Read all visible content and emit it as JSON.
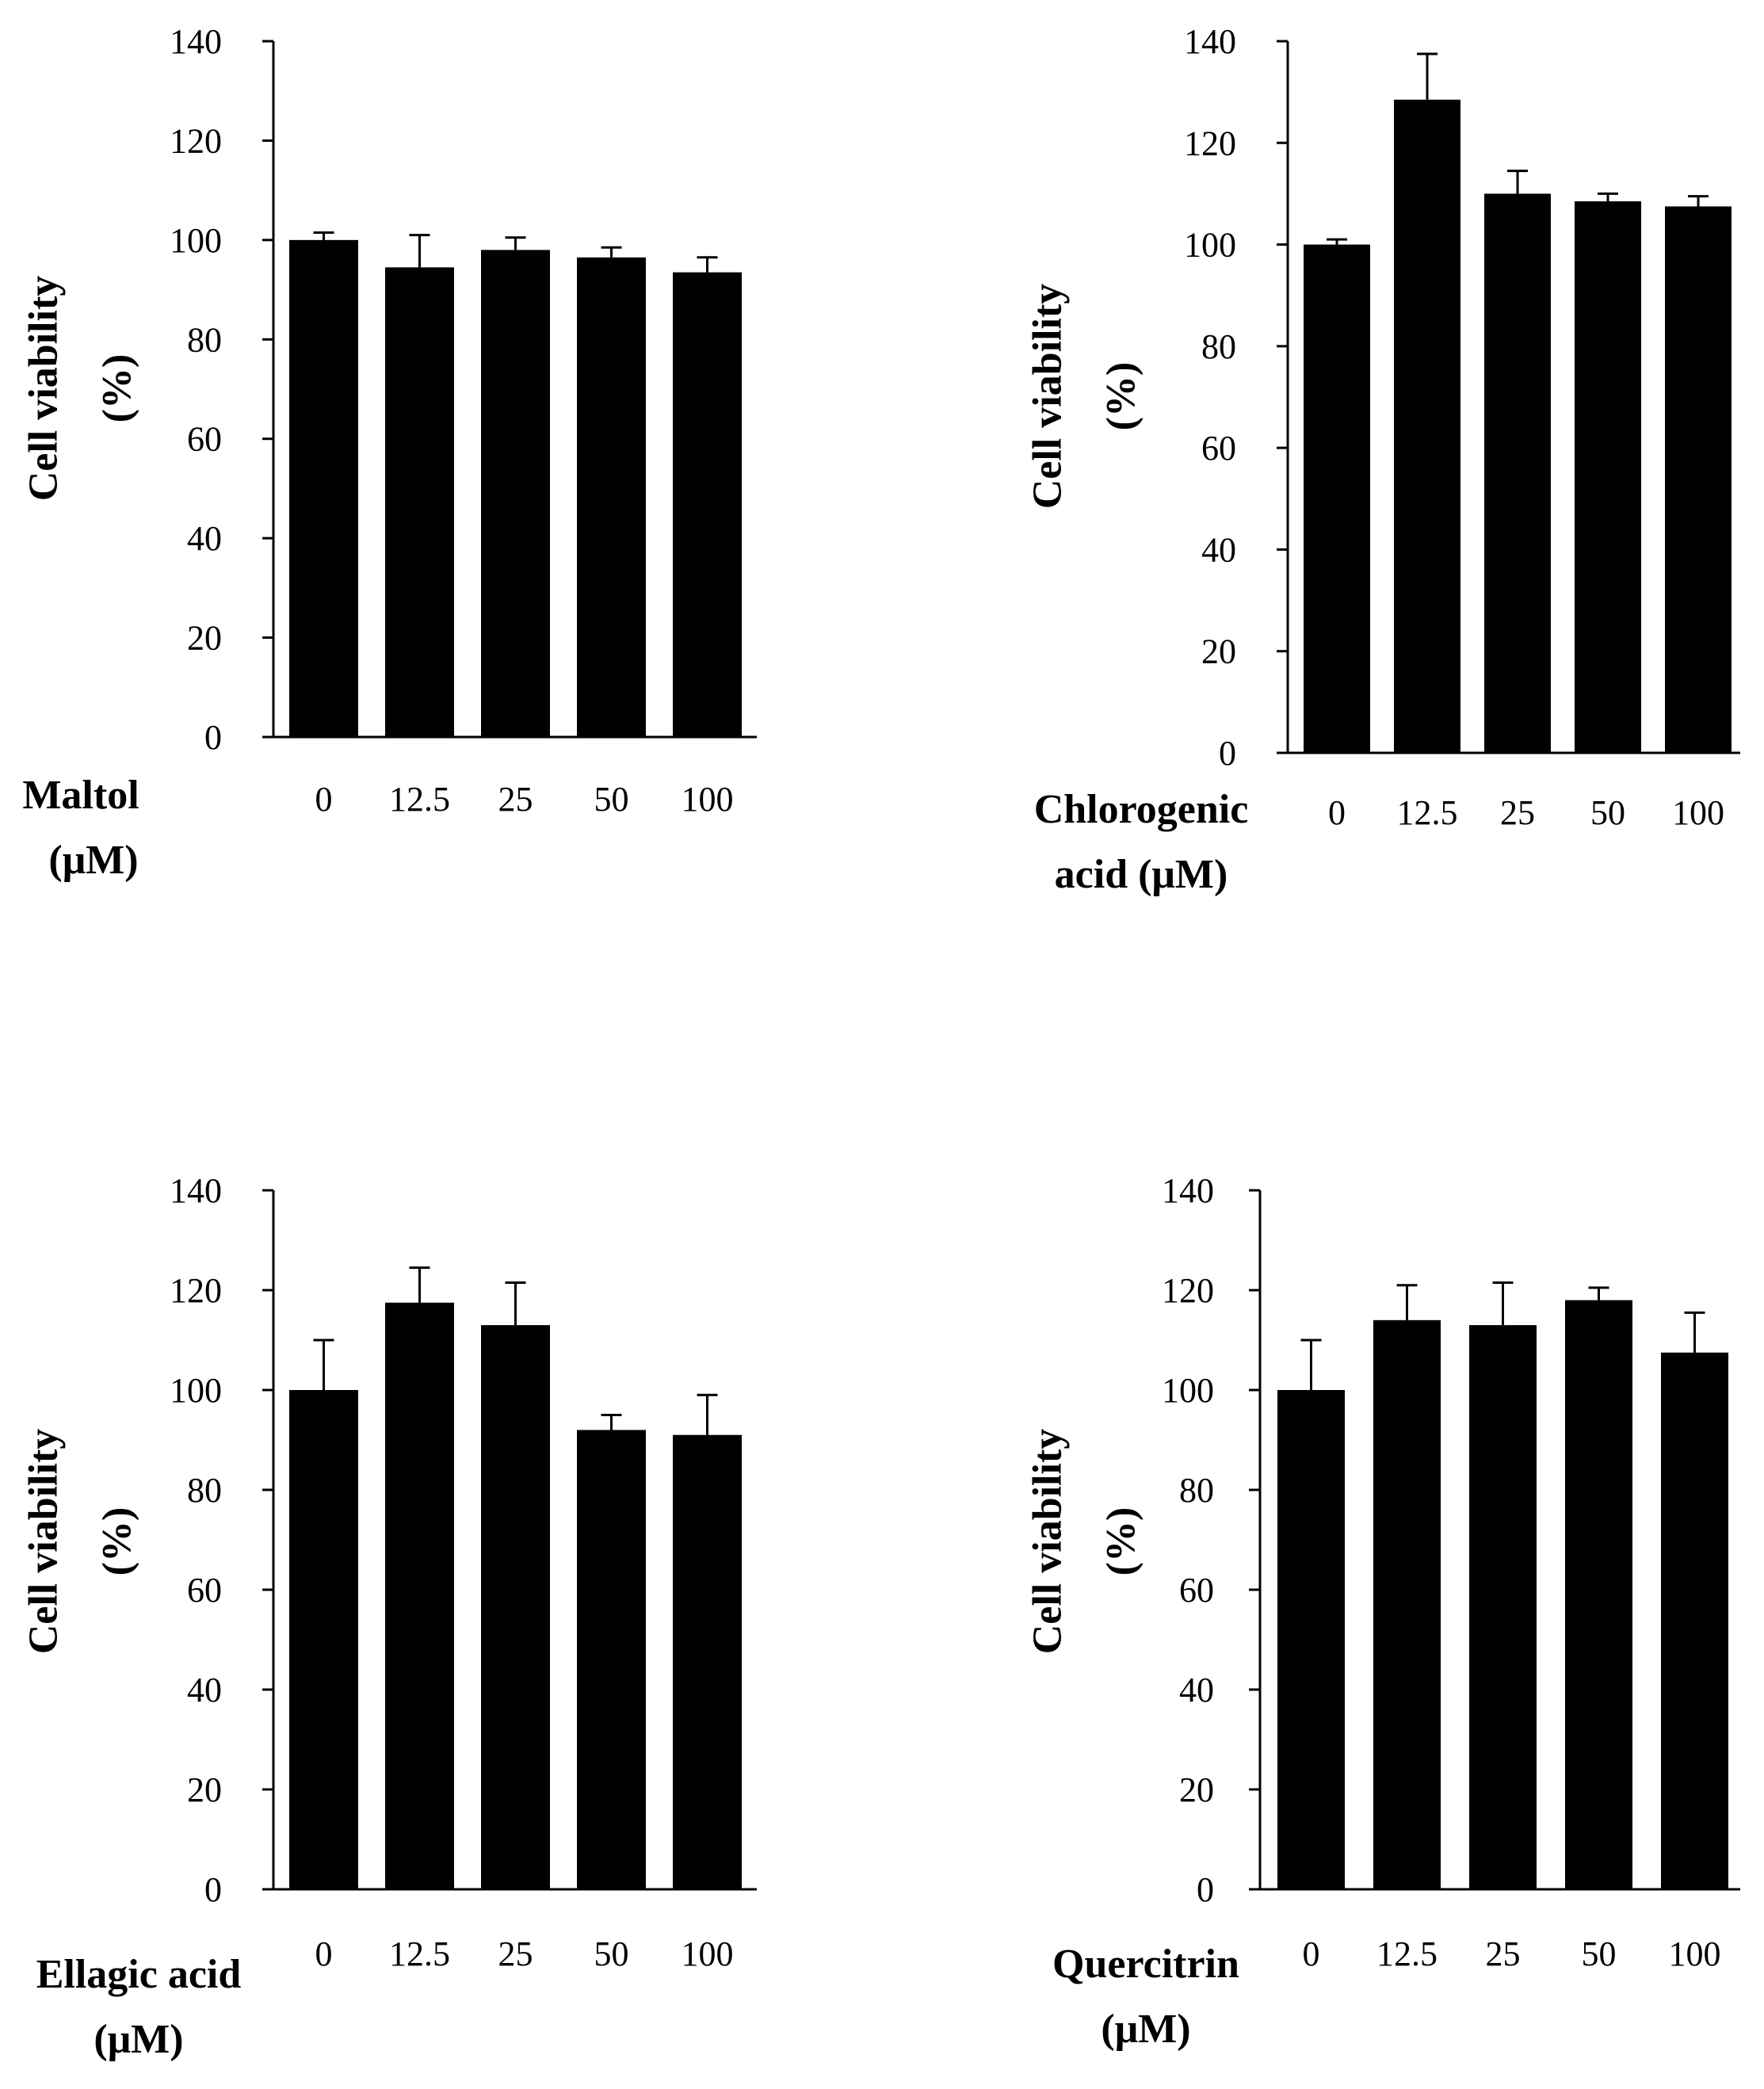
{
  "chart_data": [
    {
      "type": "bar",
      "categories": [
        "0",
        "12.5",
        "25",
        "50",
        "100"
      ],
      "values": [
        100,
        94.5,
        98,
        96.5,
        93.5
      ],
      "errors": [
        1.5,
        6.5,
        2.5,
        2,
        3
      ],
      "ylabel": "Cell viability",
      "ylabel_unit": "(%)",
      "xlabel_line1": "Maltol",
      "xlabel_line2": "(μM)",
      "ylim": [
        0,
        140
      ],
      "yticks": [
        "0",
        "20",
        "40",
        "60",
        "80",
        "100",
        "120",
        "140"
      ],
      "bar_color": "#000000"
    },
    {
      "type": "bar",
      "categories": [
        "0",
        "12.5",
        "25",
        "50",
        "100"
      ],
      "values": [
        100,
        128.5,
        110,
        108.5,
        107.5
      ],
      "errors": [
        1,
        9,
        4.5,
        1.5,
        2
      ],
      "ylabel": "Cell viability",
      "ylabel_unit": "(%)",
      "xlabel_line1": "Chlorogenic",
      "xlabel_line2": "acid  (μM)",
      "ylim": [
        0,
        140
      ],
      "yticks": [
        "0",
        "20",
        "40",
        "60",
        "80",
        "100",
        "120",
        "140"
      ],
      "bar_color": "#000000"
    },
    {
      "type": "bar",
      "categories": [
        "0",
        "12.5",
        "25",
        "50",
        "100"
      ],
      "values": [
        100,
        117.5,
        113,
        92,
        91
      ],
      "errors": [
        10,
        7,
        8.5,
        3,
        8
      ],
      "ylabel": "Cell viability",
      "ylabel_unit": "(%)",
      "xlabel_line1": "Ellagic acid",
      "xlabel_line2": "(μM)",
      "ylim": [
        0,
        140
      ],
      "yticks": [
        "0",
        "20",
        "40",
        "60",
        "80",
        "100",
        "120",
        "140"
      ],
      "bar_color": "#000000"
    },
    {
      "type": "bar",
      "categories": [
        "0",
        "12.5",
        "25",
        "50",
        "100"
      ],
      "values": [
        100,
        114,
        113,
        118,
        107.5
      ],
      "errors": [
        10,
        7,
        8.5,
        2.5,
        8
      ],
      "ylabel": "Cell viability",
      "ylabel_unit": "(%)",
      "xlabel_line1": "Quercitrin",
      "xlabel_line2": "(μM)",
      "ylim": [
        0,
        140
      ],
      "yticks": [
        "0",
        "20",
        "40",
        "60",
        "80",
        "100",
        "120",
        "140"
      ],
      "bar_color": "#000000"
    }
  ]
}
